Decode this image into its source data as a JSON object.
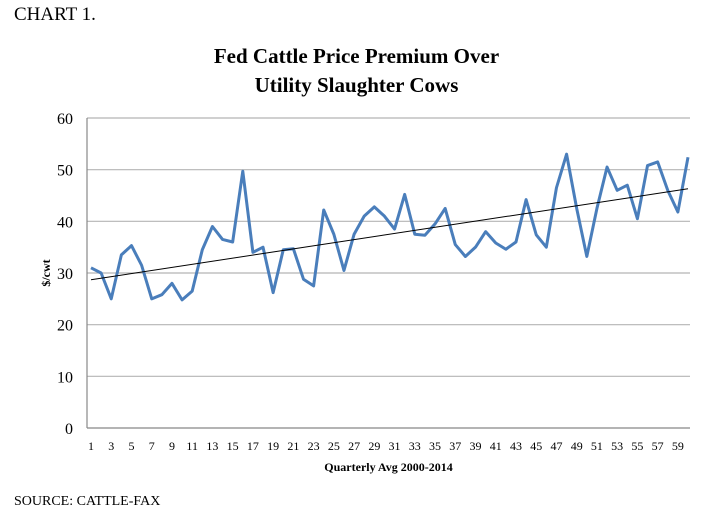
{
  "header": {
    "label": "CHART 1.",
    "source": "SOURCE: CATTLE-FAX"
  },
  "chart_data": {
    "type": "line",
    "title_lines": [
      "Fed Cattle Price Premium Over",
      "Utility Slaughter Cows"
    ],
    "xlabel": "Quarterly Avg 2000-2014",
    "ylabel": "$/cwt",
    "ylim": [
      0,
      60
    ],
    "yticks": [
      0,
      10,
      20,
      30,
      40,
      50,
      60
    ],
    "xticks": [
      1,
      3,
      5,
      7,
      9,
      11,
      13,
      15,
      17,
      19,
      21,
      23,
      25,
      27,
      29,
      31,
      33,
      35,
      37,
      39,
      41,
      43,
      45,
      47,
      49,
      51,
      53,
      55,
      57,
      59
    ],
    "grid": true,
    "series": [
      {
        "color": "#4a7ebb",
        "values": [
          31,
          30,
          25,
          33.5,
          35.3,
          31.5,
          25,
          25.8,
          28,
          24.8,
          26.5,
          34.5,
          39,
          36.5,
          36,
          49.7,
          34,
          35,
          26.2,
          34.5,
          34.7,
          28.8,
          27.5,
          42.2,
          37.5,
          30.5,
          37.5,
          41,
          42.8,
          41,
          38.5,
          45.2,
          37.5,
          37.3,
          39.5,
          42.5,
          35.5,
          33.2,
          35,
          38,
          35.8,
          34.6,
          36,
          44.2,
          37.4,
          35,
          46.5,
          53,
          42.5,
          33.2,
          42.5,
          50.5,
          46,
          47,
          40.5,
          50.8,
          51.5,
          46,
          41.8,
          52.4
        ]
      }
    ],
    "trendline": {
      "type": "linear",
      "color": "#000000",
      "start": 28.7,
      "end": 46.3
    }
  }
}
